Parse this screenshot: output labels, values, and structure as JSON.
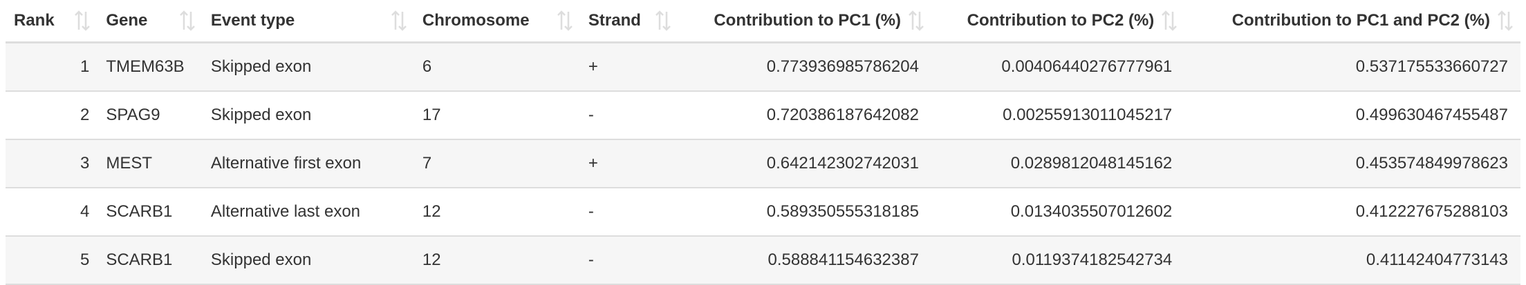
{
  "table": {
    "columns": [
      {
        "key": "rank",
        "label": "Rank"
      },
      {
        "key": "gene",
        "label": "Gene"
      },
      {
        "key": "event_type",
        "label": "Event type"
      },
      {
        "key": "chromosome",
        "label": "Chromosome"
      },
      {
        "key": "strand",
        "label": "Strand"
      },
      {
        "key": "pc1",
        "label": "Contribution to PC1 (%)"
      },
      {
        "key": "pc2",
        "label": "Contribution to PC2 (%)"
      },
      {
        "key": "pc1_pc2",
        "label": "Contribution to PC1 and PC2 (%)"
      }
    ],
    "sort_icon": "sort-up-down-icon",
    "rows": [
      {
        "rank": "1",
        "gene": "TMEM63B",
        "event_type": "Skipped exon",
        "chromosome": "6",
        "strand": "+",
        "pc1": "0.773936985786204",
        "pc2": "0.00406440276777961",
        "pc1_pc2": "0.537175533660727"
      },
      {
        "rank": "2",
        "gene": "SPAG9",
        "event_type": "Skipped exon",
        "chromosome": "17",
        "strand": "-",
        "pc1": "0.720386187642082",
        "pc2": "0.00255913011045217",
        "pc1_pc2": "0.499630467455487"
      },
      {
        "rank": "3",
        "gene": "MEST",
        "event_type": "Alternative first exon",
        "chromosome": "7",
        "strand": "+",
        "pc1": "0.642142302742031",
        "pc2": "0.0289812048145162",
        "pc1_pc2": "0.453574849978623"
      },
      {
        "rank": "4",
        "gene": "SCARB1",
        "event_type": "Alternative last exon",
        "chromosome": "12",
        "strand": "-",
        "pc1": "0.589350555318185",
        "pc2": "0.0134035507012602",
        "pc1_pc2": "0.412227675288103"
      },
      {
        "rank": "5",
        "gene": "SCARB1",
        "event_type": "Skipped exon",
        "chromosome": "12",
        "strand": "-",
        "pc1": "0.588841154632387",
        "pc2": "0.0119374182542734",
        "pc1_pc2": "0.41142404773143"
      }
    ]
  },
  "colors": {
    "text": "#333333",
    "sort_icon": "#dddddd",
    "row_stripe": "#f6f6f6",
    "border": "#dddddd"
  }
}
